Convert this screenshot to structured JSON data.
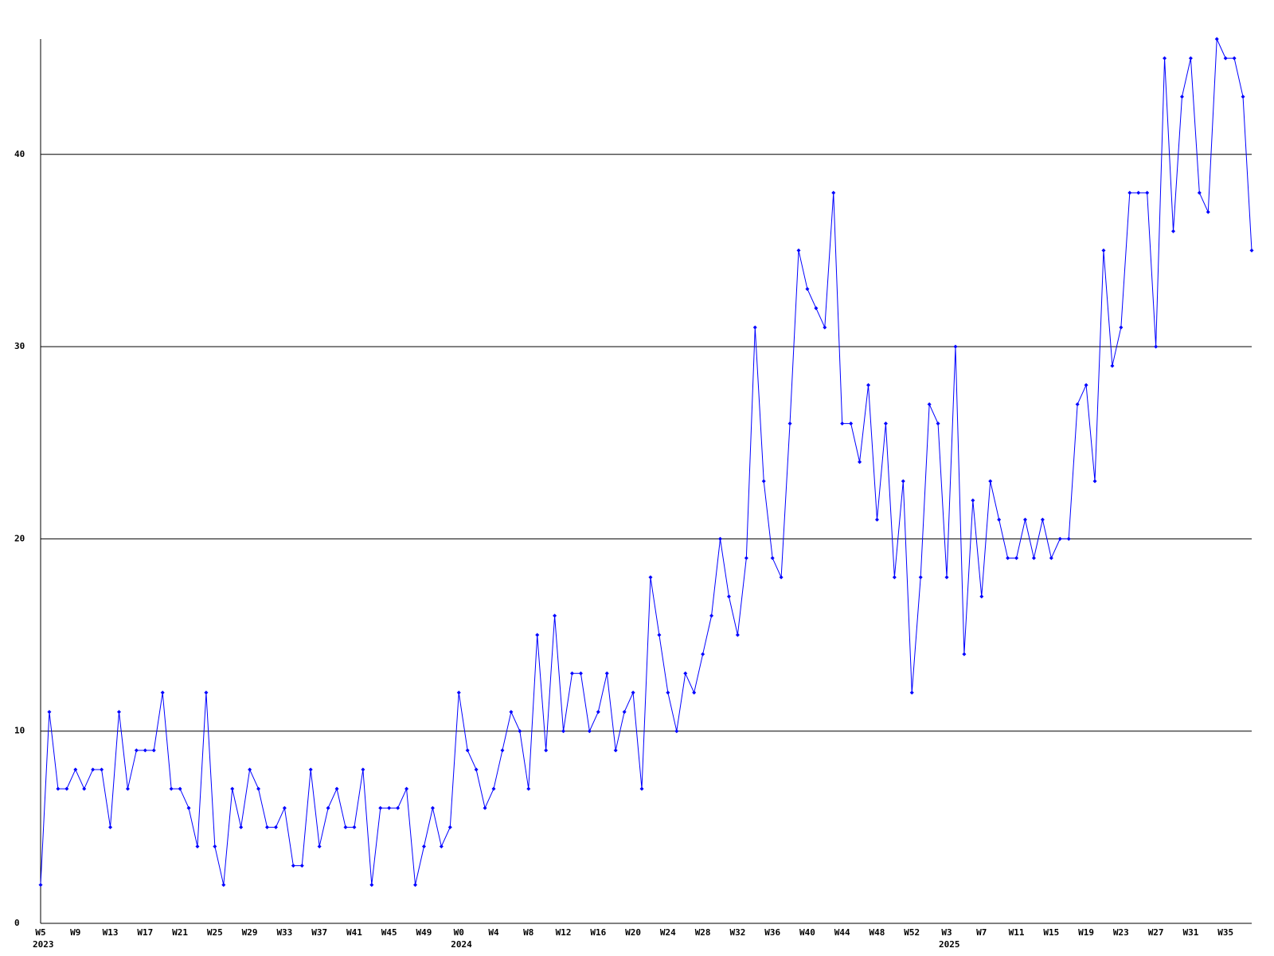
{
  "chart_data": {
    "type": "line",
    "categories": [
      "W5",
      null,
      null,
      null,
      "W9",
      null,
      null,
      null,
      "W13",
      null,
      null,
      null,
      "W17",
      null,
      null,
      null,
      "W21",
      null,
      null,
      null,
      "W25",
      null,
      null,
      null,
      "W29",
      null,
      null,
      null,
      "W33",
      null,
      null,
      null,
      "W37",
      null,
      null,
      null,
      "W41",
      null,
      null,
      null,
      "W45",
      null,
      null,
      null,
      "W49",
      null,
      null,
      null,
      "W0",
      null,
      null,
      null,
      "W4",
      null,
      null,
      null,
      "W8",
      null,
      null,
      null,
      "W12",
      null,
      null,
      null,
      "W16",
      null,
      null,
      null,
      "W20",
      null,
      null,
      null,
      "W24",
      null,
      null,
      null,
      "W28",
      null,
      null,
      null,
      "W32",
      null,
      null,
      null,
      "W36",
      null,
      null,
      null,
      "W40",
      null,
      null,
      null,
      "W44",
      null,
      null,
      null,
      "W48",
      null,
      null,
      null,
      "W52",
      null,
      null,
      null,
      "W3",
      null,
      null,
      null,
      "W7",
      null,
      null,
      null,
      "W11",
      null,
      null,
      null,
      "W15",
      null,
      null,
      null,
      "W19",
      null,
      null,
      null,
      "W23",
      null,
      null,
      null,
      "W27",
      null,
      null,
      null,
      "W31",
      null,
      null,
      null,
      "W35",
      null,
      null,
      null
    ],
    "year_labels": [
      "2023",
      null,
      null,
      null,
      null,
      null,
      null,
      null,
      null,
      null,
      null,
      null,
      null,
      null,
      null,
      null,
      null,
      null,
      null,
      null,
      null,
      null,
      null,
      null,
      null,
      null,
      null,
      null,
      null,
      null,
      null,
      null,
      null,
      null,
      null,
      null,
      null,
      null,
      null,
      null,
      null,
      null,
      null,
      null,
      null,
      null,
      null,
      null,
      "2024",
      null,
      null,
      null,
      null,
      null,
      null,
      null,
      null,
      null,
      null,
      null,
      null,
      null,
      null,
      null,
      null,
      null,
      null,
      null,
      null,
      null,
      null,
      null,
      null,
      null,
      null,
      null,
      null,
      null,
      null,
      null,
      null,
      null,
      null,
      null,
      null,
      null,
      null,
      null,
      null,
      null,
      null,
      null,
      null,
      null,
      null,
      null,
      null,
      null,
      null,
      null,
      null,
      null,
      null,
      null,
      "2025",
      null,
      null,
      null,
      null,
      null,
      null,
      null,
      null,
      null,
      null,
      null,
      null,
      null,
      null,
      null,
      null,
      null,
      null,
      null,
      null,
      null,
      null,
      null,
      null,
      null,
      null,
      null,
      null,
      null,
      null,
      null,
      null,
      null,
      null,
      null
    ],
    "series": [
      {
        "color": "#0000ff",
        "values": [
          2,
          11,
          7,
          7,
          8,
          7,
          8,
          8,
          5,
          11,
          7,
          9,
          9,
          9,
          12,
          7,
          7,
          6,
          4,
          12,
          4,
          2,
          7,
          5,
          8,
          7,
          5,
          5,
          6,
          3,
          3,
          8,
          4,
          6,
          7,
          5,
          5,
          8,
          2,
          6,
          6,
          6,
          7,
          2,
          4,
          6,
          4,
          5,
          12,
          9,
          8,
          6,
          7,
          9,
          11,
          10,
          7,
          15,
          9,
          16,
          10,
          13,
          13,
          10,
          11,
          13,
          9,
          11,
          12,
          7,
          18,
          15,
          12,
          10,
          13,
          12,
          14,
          16,
          20,
          17,
          15,
          19,
          31,
          23,
          19,
          18,
          26,
          35,
          33,
          32,
          31,
          38,
          26,
          26,
          24,
          28,
          21,
          26,
          18,
          23,
          12,
          18,
          27,
          26,
          18,
          30,
          14,
          22,
          17,
          23,
          21,
          19,
          19,
          21,
          19,
          21,
          19,
          20,
          20,
          27,
          28,
          23,
          35,
          29,
          31,
          38,
          38,
          38,
          30,
          45,
          36,
          43,
          45,
          38,
          37,
          46,
          45,
          45,
          43,
          35
        ]
      }
    ],
    "ylim": [
      0,
      46
    ],
    "yticks": [
      0,
      10,
      20,
      30,
      40
    ],
    "grid": true
  }
}
